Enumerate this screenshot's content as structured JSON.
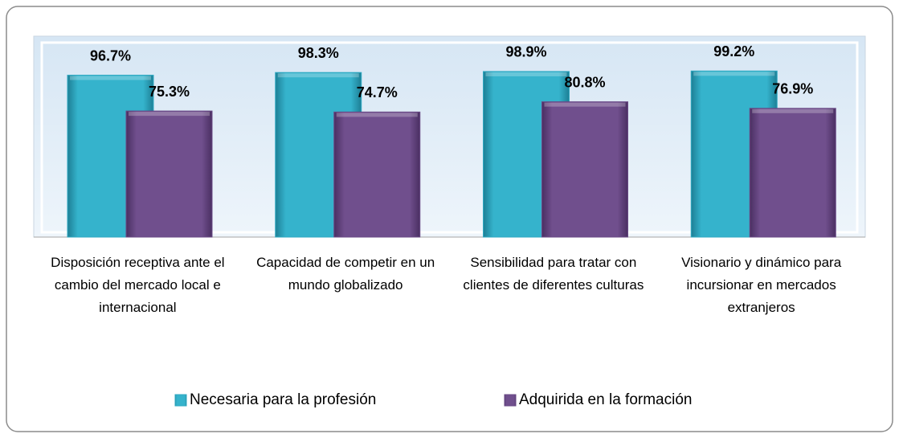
{
  "chart_data": {
    "type": "bar",
    "categories": [
      "Disposición receptiva ante el cambio del mercado local e internacional",
      "Capacidad de competir en un mundo globalizado",
      "Sensibilidad para tratar con clientes de diferentes culturas",
      "Visionario y dinámico para incursionar en mercados extranjeros"
    ],
    "series": [
      {
        "name": "Necesaria para la profesión",
        "color": "#2fa9c2",
        "values": [
          96.7,
          98.3,
          98.9,
          99.2
        ],
        "value_labels": [
          "96.7%",
          "98.3%",
          "98.9%",
          "99.2%"
        ]
      },
      {
        "name": "Adquirida en la formación",
        "color": "#6a4a86",
        "values": [
          75.3,
          74.7,
          80.8,
          76.9
        ],
        "value_labels": [
          "75.3%",
          "74.7%",
          "80.8%",
          "76.9%"
        ]
      }
    ],
    "ylim": [
      0,
      120
    ],
    "legend": "bottom"
  }
}
